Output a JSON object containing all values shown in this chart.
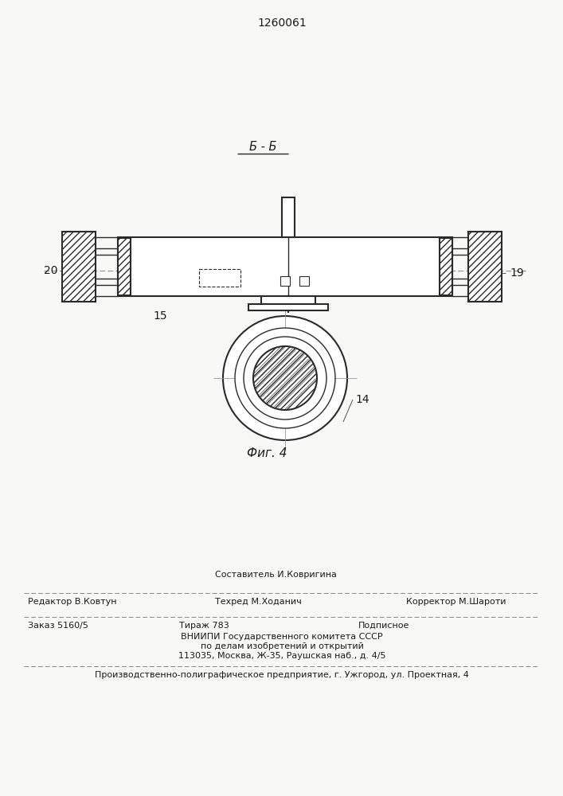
{
  "patent_number": "1260061",
  "section_label": "Б - Б",
  "fig_label": "Фиг. 4",
  "label_20": "20",
  "label_19": "19",
  "label_15": "15",
  "label_14": "14",
  "footer_line1_center_top": "Составитель И.Ковригина",
  "footer_line1_left": "Редактор В.Ковтун",
  "footer_line1_center": "Техред М.Ходанич",
  "footer_line1_right": "Корректор М.Шароти",
  "footer_line2_col1": "Заказ 5160/5",
  "footer_line2_col2": "Тираж 783",
  "footer_line2_col3": "Подписное",
  "footer_line3": "ВНИИПИ Государственного комитета СССР",
  "footer_line4": "по делам изобретений и открытий",
  "footer_line5": "113035, Москва, Ж-35, Раушская наб., д. 4/5",
  "footer_line6": "Производственно-полиграфическое предприятие, г. Ужгород, ул. Проектная, 4",
  "bg_color": "#f8f8f6",
  "line_color": "#2a2a2a",
  "text_color": "#1a1a1a"
}
